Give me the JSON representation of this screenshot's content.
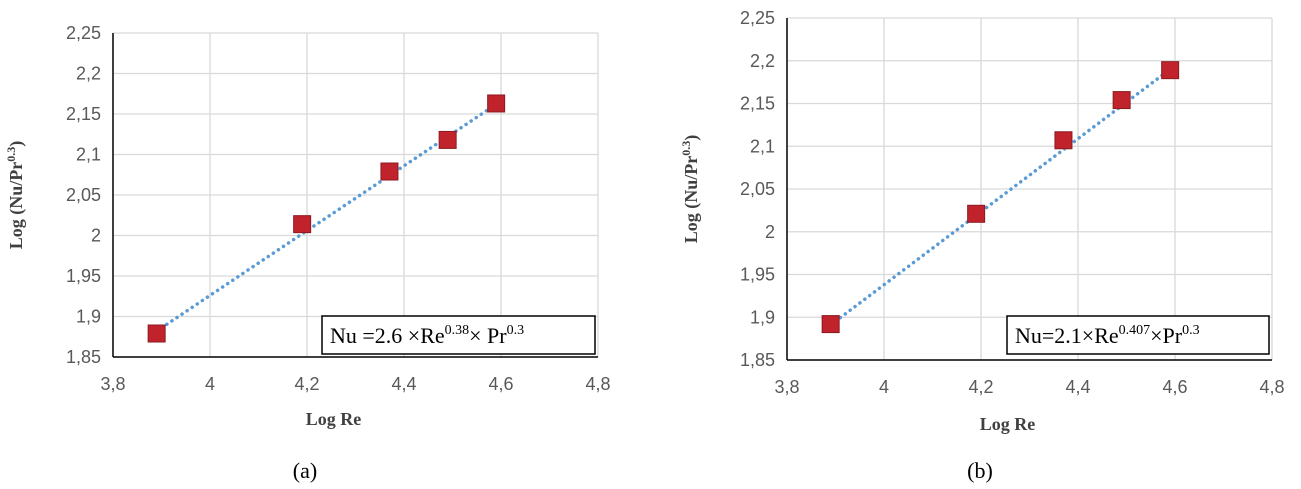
{
  "chart_data": [
    {
      "type": "scatter",
      "panel_label": "(a)",
      "xlabel": "Log Re",
      "ylabel": {
        "base": "Log (Nu/Pr",
        "sup": "0.3",
        "close": ")"
      },
      "xlim": [
        3.8,
        4.8
      ],
      "ylim": [
        1.85,
        2.25
      ],
      "x_ticks": [
        "3,8",
        "4",
        "4,2",
        "4,4",
        "4,6",
        "4,8"
      ],
      "y_ticks": [
        "1,85",
        "1,9",
        "1,95",
        "2",
        "2,05",
        "2,1",
        "2,15",
        "2,2",
        "2,25"
      ],
      "grid": true,
      "points": [
        {
          "x": 3.89,
          "y": 1.879
        },
        {
          "x": 4.19,
          "y": 2.014
        },
        {
          "x": 4.37,
          "y": 2.079
        },
        {
          "x": 4.49,
          "y": 2.118
        },
        {
          "x": 4.59,
          "y": 2.163
        }
      ],
      "trendline": {
        "x": [
          3.89,
          4.59
        ],
        "y": [
          1.882,
          2.162
        ]
      },
      "equation": {
        "p1": "Nu =2.6 ×Re",
        "s1": "0.38",
        "p2": "× Pr",
        "s2": "0.3"
      },
      "colors": {
        "marker": "#c0232c",
        "marker_edge": "#8c1a20",
        "trendline": "#5b9bd5"
      }
    },
    {
      "type": "scatter",
      "panel_label": "(b)",
      "xlabel": "Log Re",
      "ylabel": {
        "base": "Log (Nu/Pr",
        "sup": "0.3",
        "close": ")"
      },
      "xlim": [
        3.8,
        4.8
      ],
      "ylim": [
        1.85,
        2.25
      ],
      "x_ticks": [
        "3,8",
        "4",
        "4,2",
        "4,4",
        "4,6",
        "4,8"
      ],
      "y_ticks": [
        "1,85",
        "1,9",
        "1,95",
        "2",
        "2,05",
        "2,1",
        "2,15",
        "2,2",
        "2,25"
      ],
      "grid": true,
      "points": [
        {
          "x": 3.89,
          "y": 1.892
        },
        {
          "x": 4.19,
          "y": 2.021
        },
        {
          "x": 4.37,
          "y": 2.107
        },
        {
          "x": 4.49,
          "y": 2.154
        },
        {
          "x": 4.59,
          "y": 2.189
        }
      ],
      "trendline": {
        "x": [
          3.89,
          4.59
        ],
        "y": [
          1.891,
          2.19
        ]
      },
      "equation": {
        "p1": "Nu=2.1×Re",
        "s1": "0.407",
        "p2": "×Pr",
        "s2": "0.3"
      },
      "colors": {
        "marker": "#c0232c",
        "marker_edge": "#8c1a20",
        "trendline": "#5b9bd5"
      }
    }
  ]
}
